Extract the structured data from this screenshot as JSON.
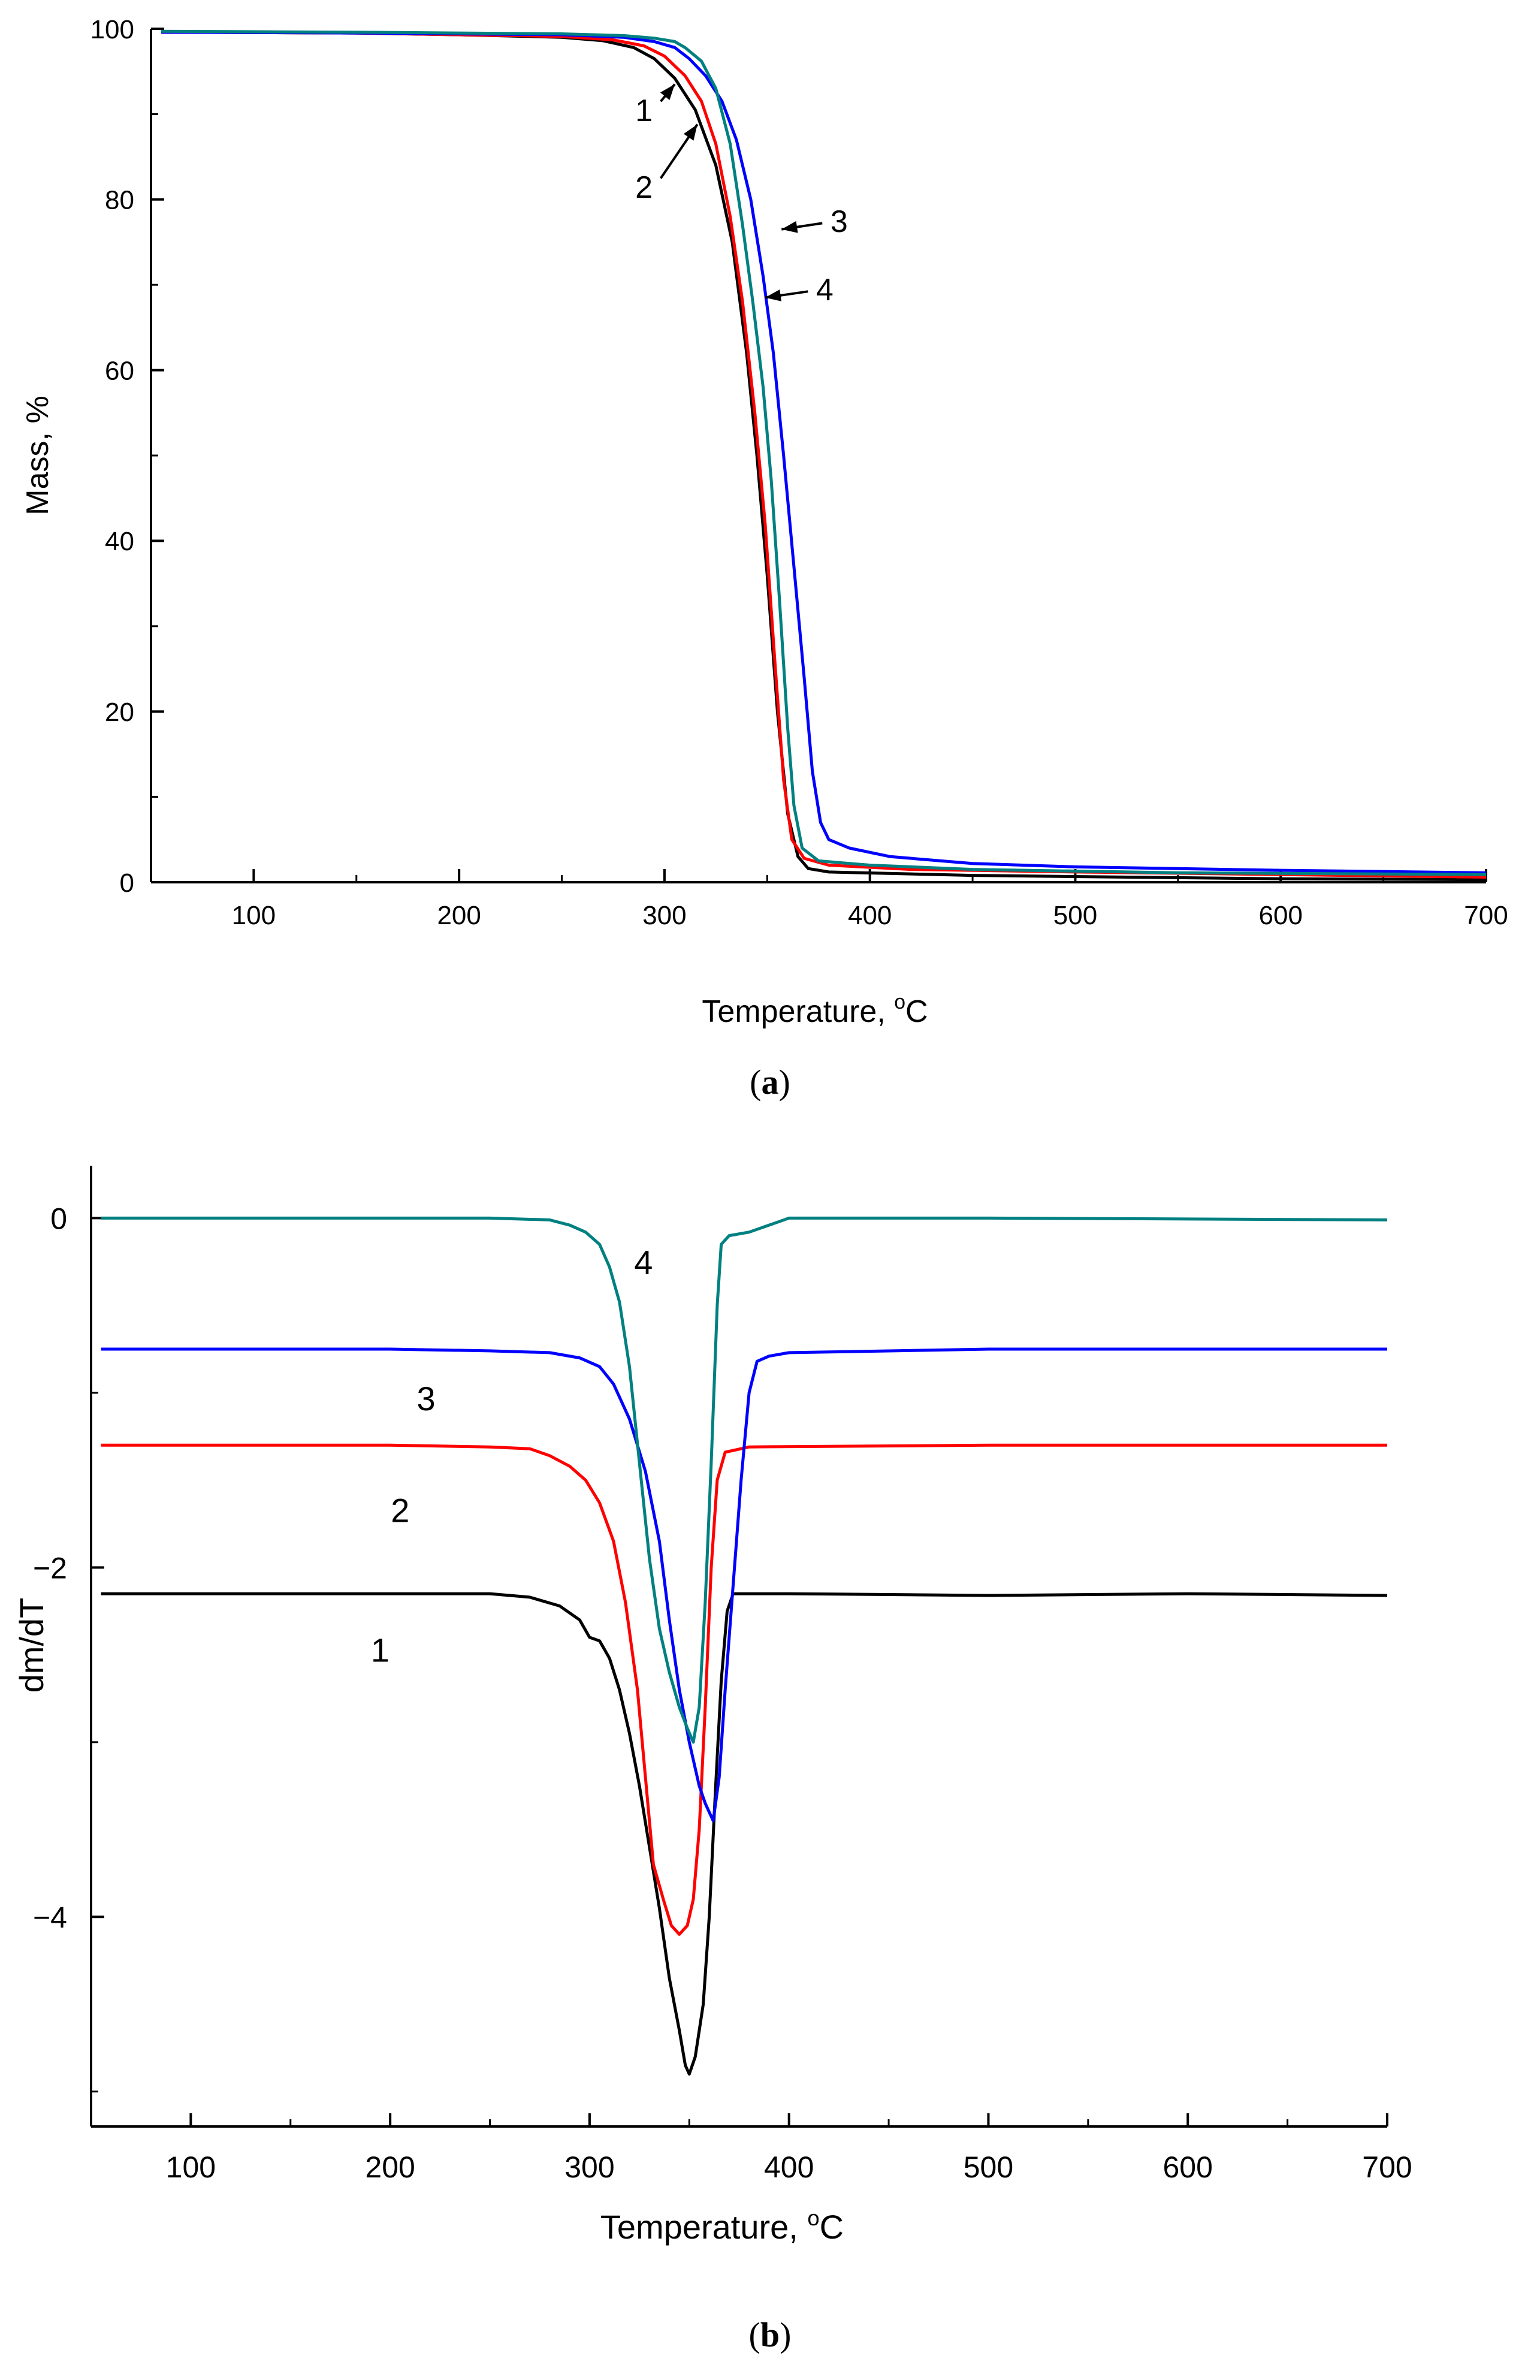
{
  "chart_data": [
    {
      "type": "line",
      "panel_label": "a",
      "xlabel_text": "Temperature, ",
      "xlabel_sup": "o",
      "xlabel_unit": "C",
      "ylabel": "Mass, %",
      "xlim": [
        50,
        700
      ],
      "ylim": [
        0,
        100
      ],
      "x_ticks": [
        100,
        200,
        300,
        400,
        500,
        600,
        700
      ],
      "y_ticks": [
        0,
        20,
        40,
        60,
        80,
        100
      ],
      "series": [
        {
          "name": "1",
          "color": "#000000",
          "points": [
            [
              55,
              99.6
            ],
            [
              150,
              99.5
            ],
            [
              200,
              99.3
            ],
            [
              250,
              99.0
            ],
            [
              270,
              98.6
            ],
            [
              285,
              97.8
            ],
            [
              295,
              96.5
            ],
            [
              305,
              94.2
            ],
            [
              315,
              90.5
            ],
            [
              325,
              84
            ],
            [
              333,
              75
            ],
            [
              340,
              62
            ],
            [
              345,
              50
            ],
            [
              350,
              36
            ],
            [
              355,
              20
            ],
            [
              360,
              8
            ],
            [
              365,
              3
            ],
            [
              370,
              1.6
            ],
            [
              380,
              1.2
            ],
            [
              450,
              0.8
            ],
            [
              600,
              0.4
            ],
            [
              700,
              0.3
            ]
          ]
        },
        {
          "name": "2",
          "color": "#ff0000",
          "points": [
            [
              55,
              99.6
            ],
            [
              150,
              99.5
            ],
            [
              200,
              99.3
            ],
            [
              250,
              99.1
            ],
            [
              275,
              98.7
            ],
            [
              290,
              98
            ],
            [
              300,
              96.8
            ],
            [
              310,
              94.5
            ],
            [
              318,
              91.5
            ],
            [
              325,
              86.5
            ],
            [
              332,
              78
            ],
            [
              338,
              68
            ],
            [
              344,
              55
            ],
            [
              349,
              42
            ],
            [
              354,
              25
            ],
            [
              358,
              12
            ],
            [
              362,
              5
            ],
            [
              368,
              2.8
            ],
            [
              380,
              2.0
            ],
            [
              420,
              1.5
            ],
            [
              500,
              1.2
            ],
            [
              700,
              0.6
            ]
          ]
        },
        {
          "name": "3",
          "color": "#0000ff",
          "points": [
            [
              55,
              99.6
            ],
            [
              150,
              99.5
            ],
            [
              200,
              99.4
            ],
            [
              250,
              99.3
            ],
            [
              280,
              99.0
            ],
            [
              295,
              98.5
            ],
            [
              305,
              97.8
            ],
            [
              312,
              96.5
            ],
            [
              320,
              94.5
            ],
            [
              328,
              91.5
            ],
            [
              335,
              87
            ],
            [
              342,
              80
            ],
            [
              348,
              71
            ],
            [
              353,
              62
            ],
            [
              358,
              50
            ],
            [
              363,
              37
            ],
            [
              368,
              24
            ],
            [
              372,
              13
            ],
            [
              376,
              7
            ],
            [
              380,
              5
            ],
            [
              390,
              4
            ],
            [
              410,
              3
            ],
            [
              450,
              2.2
            ],
            [
              500,
              1.8
            ],
            [
              600,
              1.4
            ],
            [
              700,
              1.1
            ]
          ]
        },
        {
          "name": "4",
          "color": "#008080",
          "points": [
            [
              55,
              99.7
            ],
            [
              150,
              99.6
            ],
            [
              200,
              99.5
            ],
            [
              250,
              99.4
            ],
            [
              280,
              99.2
            ],
            [
              295,
              98.9
            ],
            [
              305,
              98.5
            ],
            [
              310,
              97.8
            ],
            [
              318,
              96.2
            ],
            [
              325,
              93
            ],
            [
              332,
              86.5
            ],
            [
              338,
              77
            ],
            [
              343,
              68
            ],
            [
              348,
              58
            ],
            [
              352,
              47
            ],
            [
              356,
              33
            ],
            [
              360,
              18
            ],
            [
              363,
              9
            ],
            [
              367,
              4
            ],
            [
              375,
              2.5
            ],
            [
              400,
              2.0
            ],
            [
              450,
              1.5
            ],
            [
              550,
              1.1
            ],
            [
              700,
              0.9
            ]
          ]
        }
      ],
      "annotations": [
        {
          "text": "1",
          "tx": 290,
          "ty": 90.5,
          "ax": 305,
          "ay": 93.5
        },
        {
          "text": "2",
          "tx": 290,
          "ty": 81.5,
          "ax": 316,
          "ay": 88.8
        },
        {
          "text": "3",
          "tx": 385,
          "ty": 77.5,
          "ax": 357,
          "ay": 76.5
        },
        {
          "text": "4",
          "tx": 378,
          "ty": 69.5,
          "ax": 349,
          "ay": 68.5
        }
      ]
    },
    {
      "type": "line",
      "panel_label": "b",
      "xlabel_text": "Temperature, ",
      "xlabel_sup": "o",
      "xlabel_unit": "C",
      "ylabel": "dm/dT",
      "xlim": [
        50,
        700
      ],
      "ylim": [
        -5.2,
        0.3
      ],
      "x_ticks": [
        100,
        200,
        300,
        400,
        500,
        600,
        700
      ],
      "y_ticks": [
        -4,
        -2,
        0
      ],
      "series": [
        {
          "name": "1",
          "color": "#000000",
          "points": [
            [
              55,
              -2.15
            ],
            [
              150,
              -2.15
            ],
            [
              200,
              -2.15
            ],
            [
              250,
              -2.15
            ],
            [
              270,
              -2.17
            ],
            [
              285,
              -2.22
            ],
            [
              295,
              -2.3
            ],
            [
              300,
              -2.4
            ],
            [
              305,
              -2.42
            ],
            [
              310,
              -2.52
            ],
            [
              315,
              -2.7
            ],
            [
              320,
              -2.95
            ],
            [
              325,
              -3.25
            ],
            [
              330,
              -3.6
            ],
            [
              335,
              -3.95
            ],
            [
              340,
              -4.35
            ],
            [
              345,
              -4.65
            ],
            [
              348,
              -4.85
            ],
            [
              350,
              -4.9
            ],
            [
              353,
              -4.8
            ],
            [
              357,
              -4.5
            ],
            [
              360,
              -4.0
            ],
            [
              363,
              -3.3
            ],
            [
              366,
              -2.65
            ],
            [
              369,
              -2.25
            ],
            [
              372,
              -2.15
            ],
            [
              400,
              -2.15
            ],
            [
              500,
              -2.16
            ],
            [
              600,
              -2.15
            ],
            [
              700,
              -2.16
            ]
          ]
        },
        {
          "name": "2",
          "color": "#ff0000",
          "points": [
            [
              55,
              -1.3
            ],
            [
              150,
              -1.3
            ],
            [
              200,
              -1.3
            ],
            [
              250,
              -1.31
            ],
            [
              270,
              -1.32
            ],
            [
              280,
              -1.36
            ],
            [
              290,
              -1.42
            ],
            [
              298,
              -1.5
            ],
            [
              305,
              -1.63
            ],
            [
              312,
              -1.85
            ],
            [
              318,
              -2.2
            ],
            [
              324,
              -2.7
            ],
            [
              328,
              -3.2
            ],
            [
              332,
              -3.7
            ],
            [
              337,
              -3.9
            ],
            [
              341,
              -4.05
            ],
            [
              345,
              -4.1
            ],
            [
              349,
              -4.05
            ],
            [
              352,
              -3.9
            ],
            [
              355,
              -3.5
            ],
            [
              358,
              -2.8
            ],
            [
              361,
              -2.0
            ],
            [
              364,
              -1.5
            ],
            [
              368,
              -1.34
            ],
            [
              380,
              -1.31
            ],
            [
              500,
              -1.3
            ],
            [
              700,
              -1.3
            ]
          ]
        },
        {
          "name": "3",
          "color": "#0000ff",
          "points": [
            [
              55,
              -0.75
            ],
            [
              150,
              -0.75
            ],
            [
              200,
              -0.75
            ],
            [
              250,
              -0.76
            ],
            [
              280,
              -0.77
            ],
            [
              295,
              -0.8
            ],
            [
              305,
              -0.85
            ],
            [
              312,
              -0.95
            ],
            [
              320,
              -1.15
            ],
            [
              328,
              -1.45
            ],
            [
              335,
              -1.85
            ],
            [
              340,
              -2.3
            ],
            [
              345,
              -2.7
            ],
            [
              350,
              -3.0
            ],
            [
              355,
              -3.25
            ],
            [
              358,
              -3.35
            ],
            [
              362,
              -3.45
            ],
            [
              365,
              -3.2
            ],
            [
              368,
              -2.7
            ],
            [
              372,
              -2.1
            ],
            [
              376,
              -1.5
            ],
            [
              380,
              -1.0
            ],
            [
              384,
              -0.82
            ],
            [
              390,
              -0.79
            ],
            [
              400,
              -0.77
            ],
            [
              500,
              -0.75
            ],
            [
              700,
              -0.75
            ]
          ]
        },
        {
          "name": "4",
          "color": "#008080",
          "points": [
            [
              55,
              0.0
            ],
            [
              150,
              0.0
            ],
            [
              200,
              0.0
            ],
            [
              250,
              0.0
            ],
            [
              280,
              -0.01
            ],
            [
              290,
              -0.04
            ],
            [
              298,
              -0.08
            ],
            [
              305,
              -0.15
            ],
            [
              310,
              -0.28
            ],
            [
              315,
              -0.48
            ],
            [
              320,
              -0.85
            ],
            [
              325,
              -1.4
            ],
            [
              330,
              -1.95
            ],
            [
              335,
              -2.35
            ],
            [
              340,
              -2.6
            ],
            [
              345,
              -2.8
            ],
            [
              349,
              -2.92
            ],
            [
              352,
              -3.0
            ],
            [
              355,
              -2.8
            ],
            [
              358,
              -2.2
            ],
            [
              361,
              -1.4
            ],
            [
              364,
              -0.5
            ],
            [
              366,
              -0.15
            ],
            [
              370,
              -0.1
            ],
            [
              380,
              -0.08
            ],
            [
              395,
              -0.02
            ],
            [
              400,
              0.0
            ],
            [
              500,
              0.0
            ],
            [
              700,
              -0.01
            ]
          ]
        }
      ],
      "annotations": [
        {
          "text": "4",
          "tx": 327,
          "ty": -0.25
        },
        {
          "text": "3",
          "tx": 218,
          "ty": -1.03
        },
        {
          "text": "2",
          "tx": 205,
          "ty": -1.67
        },
        {
          "text": "1",
          "tx": 195,
          "ty": -2.47
        }
      ]
    }
  ]
}
